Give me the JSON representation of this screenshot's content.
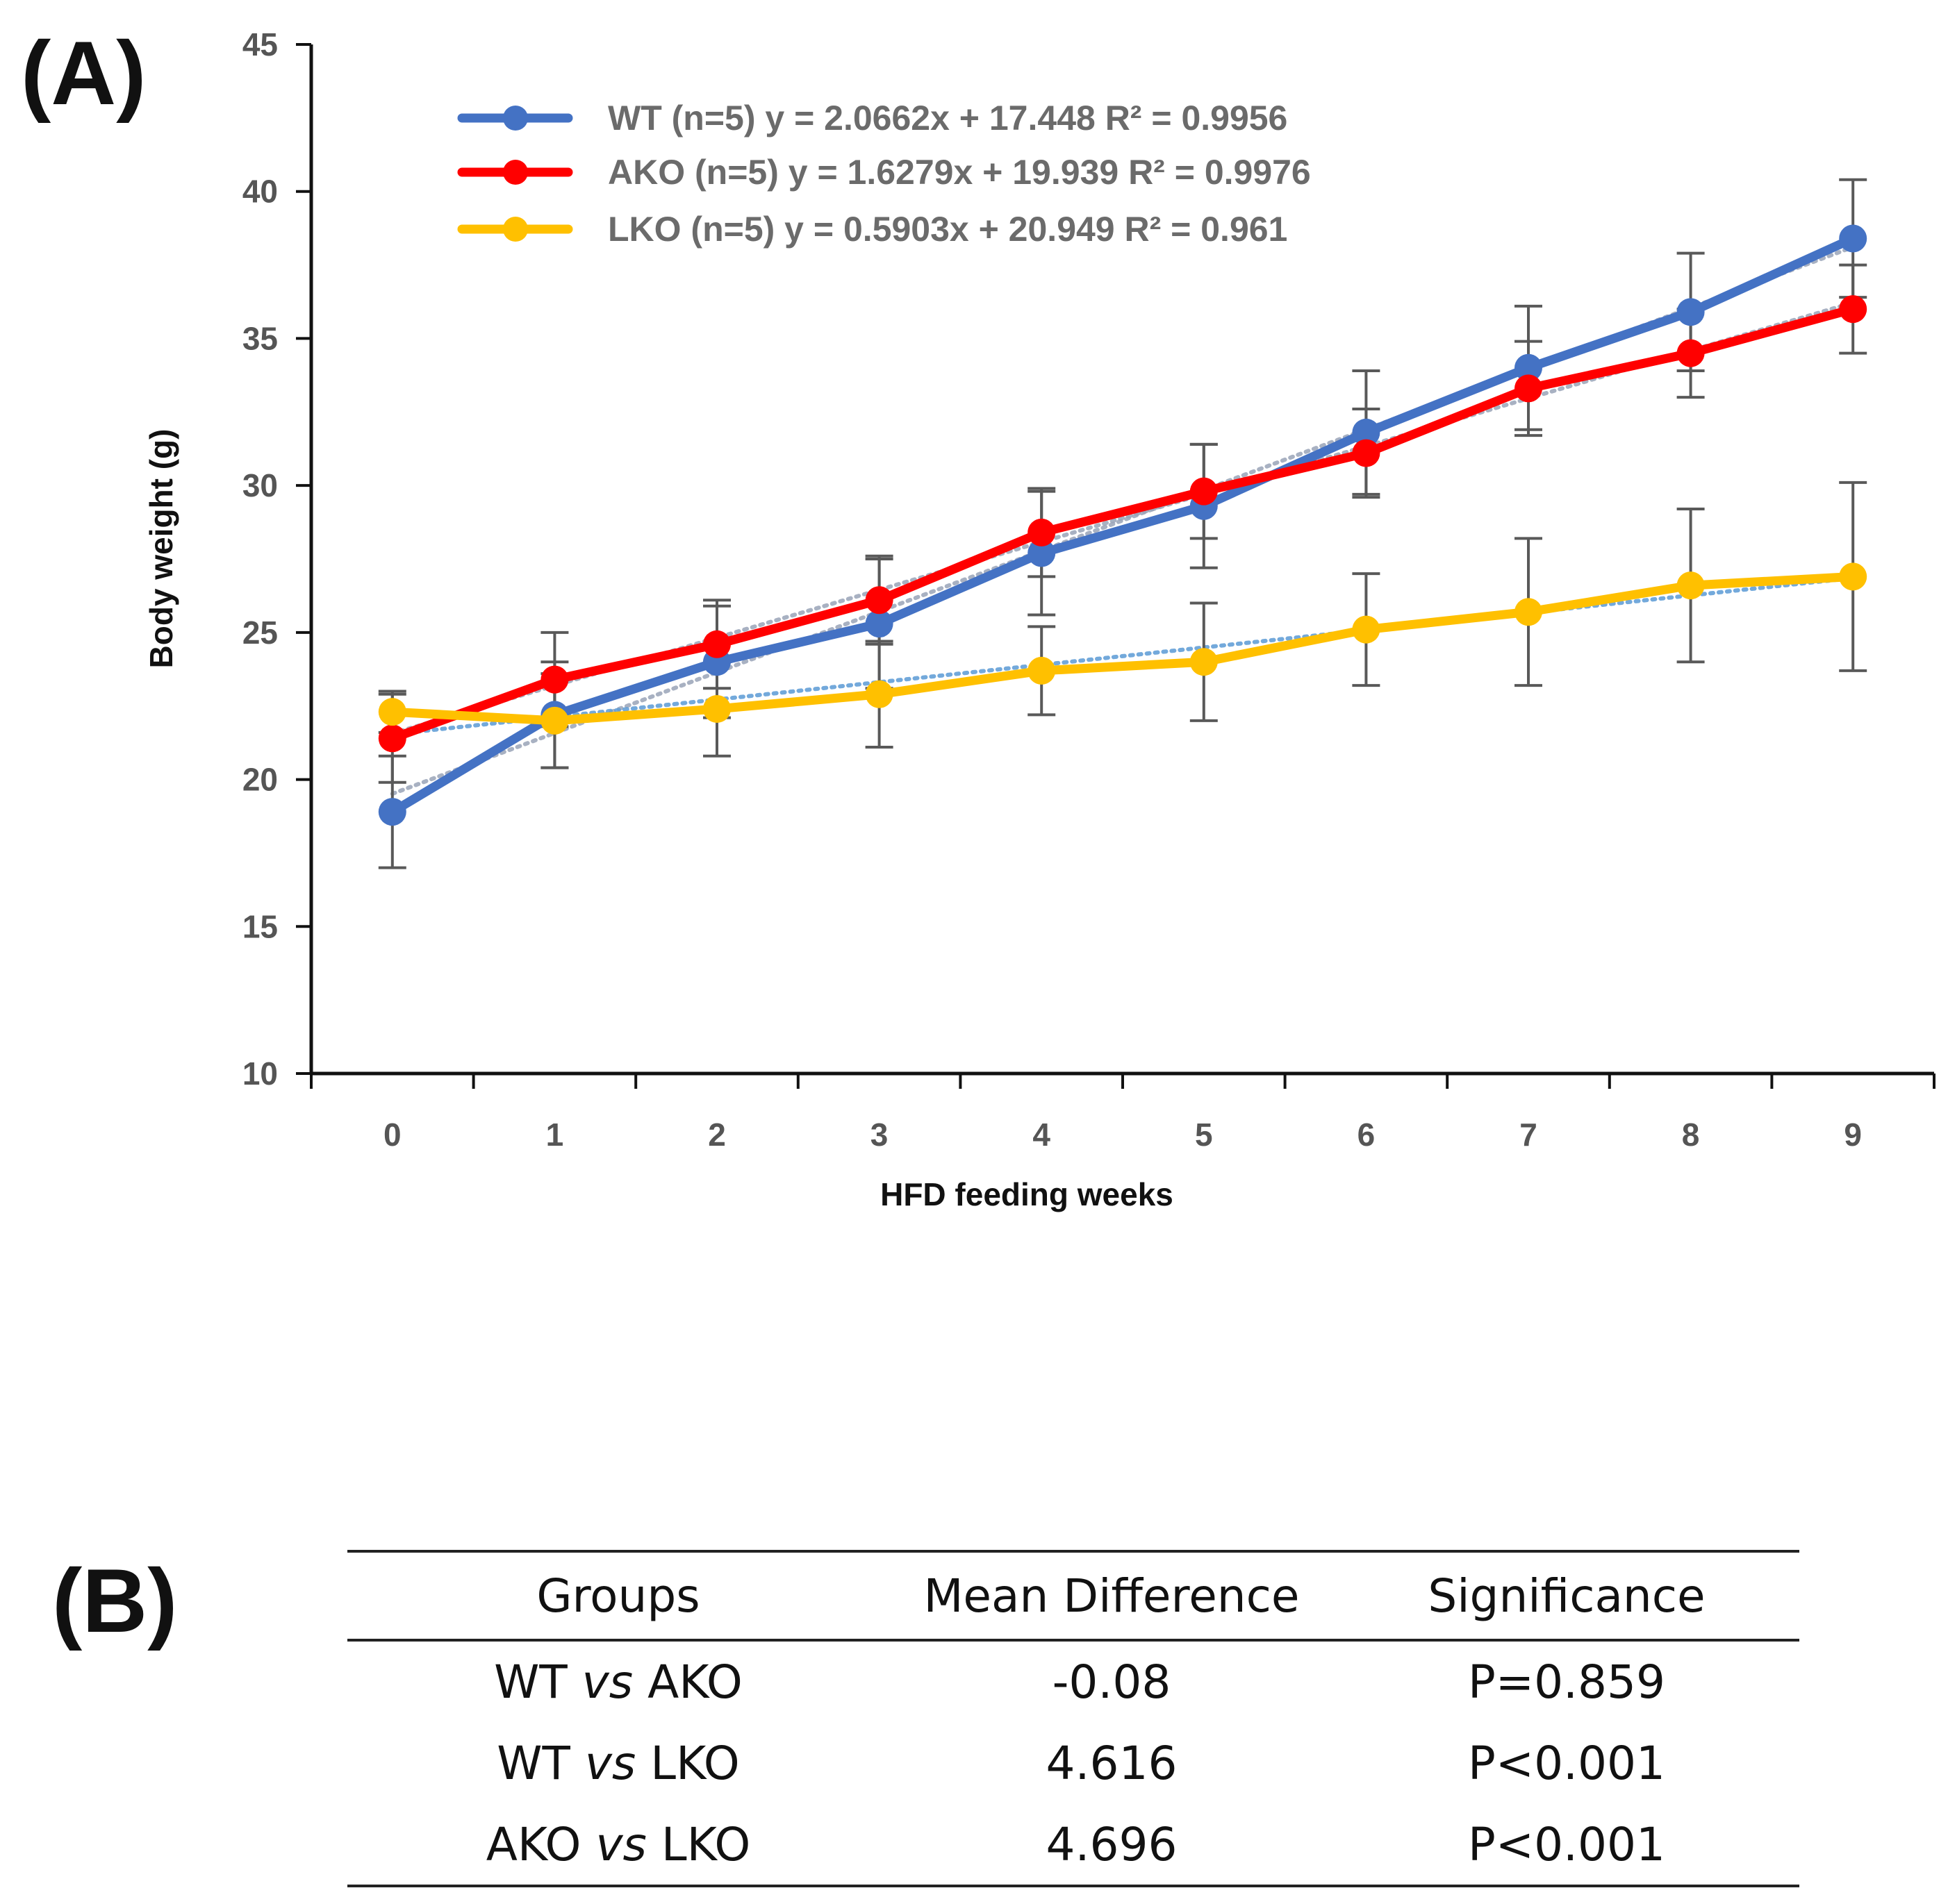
{
  "panel_a": {
    "label": "(A)"
  },
  "panel_b": {
    "label": "(B)"
  },
  "chart_data": {
    "type": "line",
    "title": "",
    "xlabel": "HFD feeding weeks",
    "ylabel": "Body weight (g)",
    "ylim": [
      10,
      45
    ],
    "xlim": [
      -0.5,
      9.5
    ],
    "y_ticks": [
      10,
      15,
      20,
      25,
      30,
      35,
      40,
      45
    ],
    "categories": [
      "0",
      "1",
      "2",
      "3",
      "4",
      "5",
      "6",
      "7",
      "8",
      "9"
    ],
    "x": [
      0,
      1,
      2,
      3,
      4,
      5,
      6,
      7,
      8,
      9
    ],
    "grid": false,
    "legend_position": "top-left",
    "series": [
      {
        "name": "WT (n=5)",
        "legend_text": "WT (n=5) y = 2.0662x + 17.448  R² = 0.9956",
        "color": "#4472C4",
        "values": [
          18.9,
          22.2,
          24.0,
          25.3,
          27.7,
          29.3,
          31.8,
          34.0,
          35.9,
          38.4
        ],
        "errors": [
          1.9,
          1.8,
          1.9,
          2.2,
          2.1,
          2.1,
          2.1,
          2.1,
          2.0,
          2.0
        ],
        "trend": {
          "slope": 2.0662,
          "intercept": 17.448,
          "r2": 0.9956
        }
      },
      {
        "name": "AKO (n=5)",
        "legend_text": "AKO (n=5)  y = 1.6279x + 19.939  R² = 0.9976",
        "color": "#FF0000",
        "values": [
          21.4,
          23.4,
          24.6,
          26.1,
          28.4,
          29.8,
          31.1,
          33.3,
          34.5,
          36.0
        ],
        "errors": [
          1.5,
          1.6,
          1.5,
          1.5,
          1.5,
          1.6,
          1.5,
          1.6,
          1.5,
          1.5
        ],
        "trend": {
          "slope": 1.6279,
          "intercept": 19.939,
          "r2": 0.9976
        }
      },
      {
        "name": "LKO (n=5)",
        "legend_text": "LKO (n=5) y = 0.5903x + 20.949  R² = 0.961",
        "color": "#FFC000",
        "values": [
          22.3,
          22.0,
          22.4,
          22.9,
          23.7,
          24.0,
          25.1,
          25.7,
          26.6,
          26.9
        ],
        "errors": [
          0.7,
          1.6,
          1.6,
          1.8,
          1.5,
          2.0,
          1.9,
          2.5,
          2.6,
          3.2
        ],
        "trend": {
          "slope": 0.5903,
          "intercept": 20.949,
          "r2": 0.961
        }
      }
    ]
  },
  "table": {
    "headers": {
      "groups": "Groups",
      "mean_difference": "Mean Difference",
      "significance": "Significance"
    },
    "rows": [
      {
        "group_a": "WT",
        "vs": "vs",
        "group_b": "AKO",
        "mean_difference": "-0.08",
        "significance": "P=0.859"
      },
      {
        "group_a": "WT",
        "vs": "vs",
        "group_b": "LKO",
        "mean_difference": "4.616",
        "significance": "P<0.001"
      },
      {
        "group_a": "AKO",
        "vs": "vs",
        "group_b": "LKO",
        "mean_difference": "4.696",
        "significance": "P<0.001"
      }
    ]
  }
}
